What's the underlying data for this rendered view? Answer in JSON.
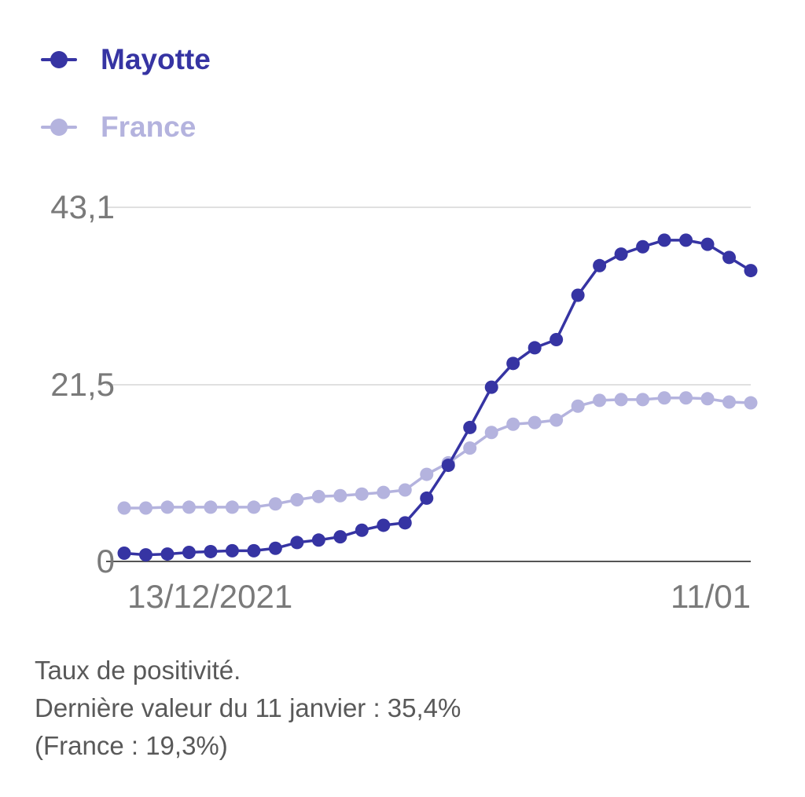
{
  "legend": [
    {
      "name": "Mayotte",
      "color": "#3634a3"
    },
    {
      "name": "France",
      "color": "#b4b3de"
    }
  ],
  "caption": {
    "line1": "Taux de positivité.",
    "line2": "Dernière valeur du 11 janvier : 35,4%",
    "line3": "(France : 19,3%)"
  },
  "chart_data": {
    "type": "line",
    "ylim": [
      0,
      43.1
    ],
    "y_ticks": [
      "0",
      "21,5",
      "43,1"
    ],
    "y_tick_values": [
      0,
      21.5,
      43.1
    ],
    "x_tick_labels": [
      "13/12/2021",
      "11/01"
    ],
    "x": [
      "13/12/2021",
      "14/12/2021",
      "15/12/2021",
      "16/12/2021",
      "17/12/2021",
      "18/12/2021",
      "19/12/2021",
      "20/12/2021",
      "21/12/2021",
      "22/12/2021",
      "23/12/2021",
      "24/12/2021",
      "25/12/2021",
      "26/12/2021",
      "27/12/2021",
      "28/12/2021",
      "29/12/2021",
      "30/12/2021",
      "31/12/2021",
      "01/01/2022",
      "02/01/2022",
      "03/01/2022",
      "04/01/2022",
      "05/01/2022",
      "06/01/2022",
      "07/01/2022",
      "08/01/2022",
      "09/01/2022",
      "10/01/2022",
      "11/01/2022"
    ],
    "grid": true,
    "series": [
      {
        "name": "Mayotte",
        "color": "#3634a3",
        "values": [
          1.0,
          0.8,
          0.9,
          1.1,
          1.2,
          1.3,
          1.3,
          1.6,
          2.3,
          2.6,
          3.0,
          3.8,
          4.4,
          4.7,
          7.7,
          11.7,
          16.3,
          21.2,
          24.1,
          26.0,
          27.0,
          32.4,
          36.0,
          37.4,
          38.3,
          39.1,
          39.1,
          38.6,
          37.0,
          35.4
        ]
      },
      {
        "name": "France",
        "color": "#b4b3de",
        "values": [
          6.5,
          6.5,
          6.6,
          6.6,
          6.6,
          6.6,
          6.6,
          7.0,
          7.5,
          7.9,
          8.0,
          8.2,
          8.4,
          8.7,
          10.6,
          12.0,
          13.8,
          15.7,
          16.7,
          16.9,
          17.2,
          18.9,
          19.6,
          19.7,
          19.7,
          19.9,
          19.9,
          19.8,
          19.4,
          19.3
        ]
      }
    ]
  }
}
